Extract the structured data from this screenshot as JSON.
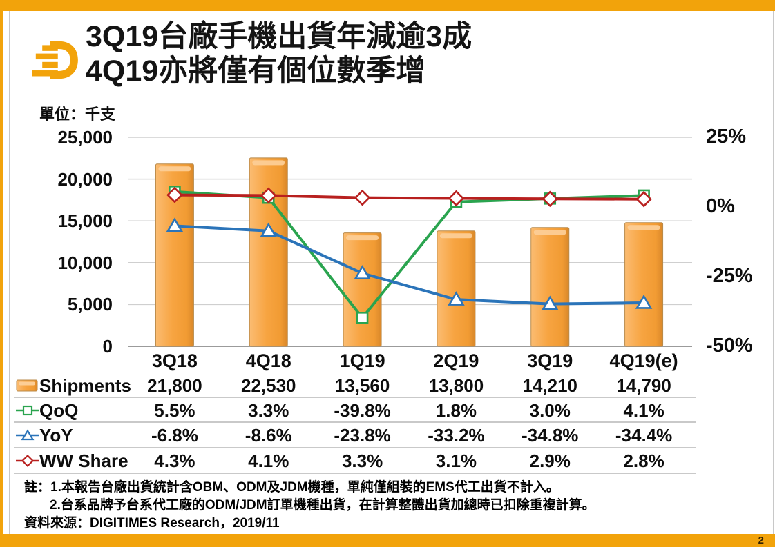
{
  "page": {
    "number": "2"
  },
  "header": {
    "title_line1": "3Q19台廠手機出貨年減逾3成",
    "title_line2": "4Q19亦將僅有個位數季增",
    "logo": "digitimes-d-logo"
  },
  "unit_label": "單位：千支",
  "chart_data": {
    "type": "combo-bar-line",
    "categories": [
      "3Q18",
      "4Q18",
      "1Q19",
      "2Q19",
      "3Q19",
      "4Q19(e)"
    ],
    "series": [
      {
        "name": "Shipments",
        "type": "bar",
        "axis": "left",
        "color": "#F7A443",
        "values": [
          21800,
          22530,
          13560,
          13800,
          14210,
          14790
        ]
      },
      {
        "name": "QoQ",
        "type": "line",
        "axis": "right",
        "color": "#2AA44F",
        "marker": "square",
        "values": [
          5.5,
          3.3,
          -39.8,
          1.8,
          3.0,
          4.1
        ]
      },
      {
        "name": "YoY",
        "type": "line",
        "axis": "right",
        "color": "#2B74B9",
        "marker": "triangle",
        "values": [
          -6.8,
          -8.6,
          -23.8,
          -33.2,
          -34.8,
          -34.4
        ]
      },
      {
        "name": "WW Share",
        "type": "line",
        "axis": "right",
        "color": "#B8201F",
        "marker": "diamond",
        "values": [
          4.3,
          4.1,
          3.3,
          3.1,
          2.9,
          2.8
        ]
      }
    ],
    "left_axis": {
      "min": 0,
      "max": 25000,
      "tick_step": 5000,
      "ticks": [
        {
          "v": 25000,
          "label": "25,000"
        },
        {
          "v": 20000,
          "label": "20,000"
        },
        {
          "v": 15000,
          "label": "15,000"
        },
        {
          "v": 10000,
          "label": "10,000"
        },
        {
          "v": 5000,
          "label": "5,000"
        },
        {
          "v": 0,
          "label": "0"
        }
      ]
    },
    "right_axis": {
      "min": -50,
      "max": 25,
      "ticks": [
        {
          "v": 25,
          "label": "25%"
        },
        {
          "v": 0,
          "label": "0%"
        },
        {
          "v": -25,
          "label": "-25%"
        },
        {
          "v": -50,
          "label": "-50%"
        }
      ]
    },
    "grid": true,
    "legend_position": "table-left"
  },
  "table": {
    "rows": [
      {
        "label": "Shipments",
        "marker": "bar",
        "color": "#F7A443",
        "values": [
          "21,800",
          "22,530",
          "13,560",
          "13,800",
          "14,210",
          "14,790"
        ]
      },
      {
        "label": "QoQ",
        "marker": "square",
        "color": "#2AA44F",
        "values": [
          "5.5%",
          "3.3%",
          "-39.8%",
          "1.8%",
          "3.0%",
          "4.1%"
        ]
      },
      {
        "label": "YoY",
        "marker": "triangle",
        "color": "#2B74B9",
        "values": [
          "-6.8%",
          "-8.6%",
          "-23.8%",
          "-33.2%",
          "-34.8%",
          "-34.4%"
        ]
      },
      {
        "label": "WW Share",
        "marker": "diamond",
        "color": "#B8201F",
        "values": [
          "4.3%",
          "4.1%",
          "3.3%",
          "3.1%",
          "2.9%",
          "2.8%"
        ]
      }
    ]
  },
  "notes": {
    "line1": "註：1.本報告台廠出貨統計含OBM、ODM及JDM機種，單純僅組裝的EMS代工出貨不計入。",
    "line2": "2.台系品牌予台系代工廠的ODM/JDM訂單機種出貨，在計算整體出貨加總時已扣除重複計算。",
    "source": "資料來源：DIGITIMES Research，2019/11"
  },
  "colors": {
    "accent_orange": "#F2A30B",
    "bar_fill": "#F7A443",
    "qoq_green": "#2AA44F",
    "yoy_blue": "#2B74B9",
    "ww_red": "#B8201F",
    "grid": "#CFCFCF",
    "axis": "#9B9B9B"
  }
}
